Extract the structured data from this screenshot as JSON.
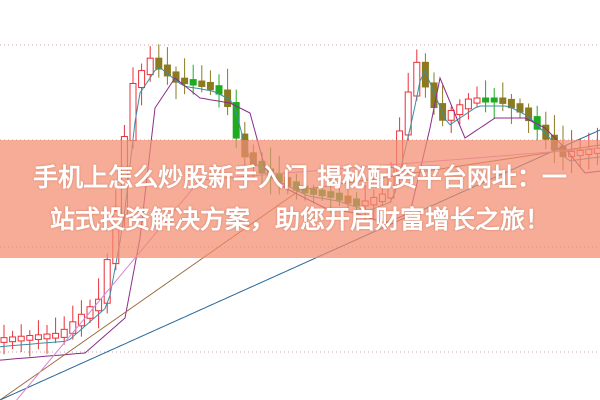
{
  "banner": {
    "line1": "手机上怎么炒股新手入门 揭秘配资平台网址：一",
    "line2": "站式投资解决方案，助您开启财富增长之旅！"
  },
  "colors": {
    "up": "#e8303a",
    "down": "#1faa1f",
    "down_flat": "#8b7a1f",
    "banner": "#f28c6e",
    "ma_purple": "#8b2c8b",
    "ma_teal": "#3a8fa0",
    "ma_brown": "#9a6a3a",
    "ma_pink": "#d88ad8",
    "ma_blue": "#2b6a9a"
  }
}
